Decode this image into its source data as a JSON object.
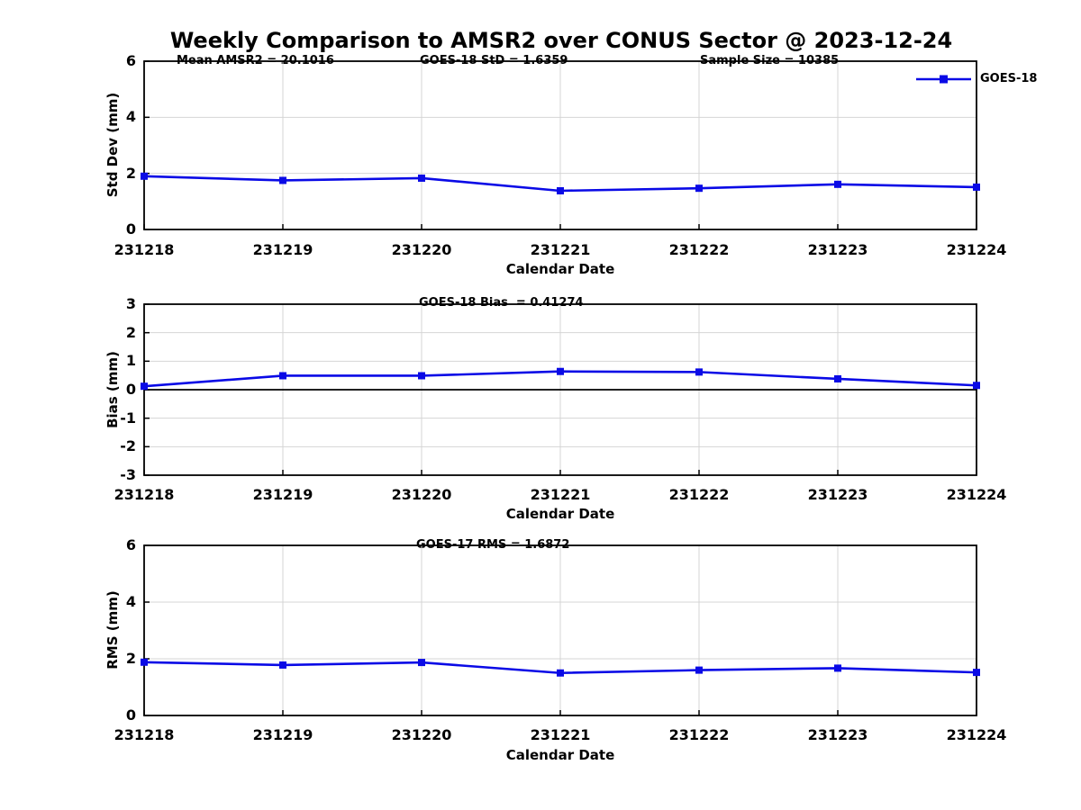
{
  "title": "Weekly Comparison to AMSR2 over CONUS Sector @ 2023-12-24",
  "annotations": {
    "mean_amsr2": "Mean AMSR2 = 20.1016",
    "goes18_std": "GOES-18 StD = 1.6359",
    "sample_size": "Sample Size = 10385"
  },
  "legend": {
    "label": "GOES-18"
  },
  "colors": {
    "line": "#0a0ae6",
    "marker": "#0a0ae6",
    "grid": "#d4d4d4",
    "frame": "#000000",
    "zero_line": "#000000",
    "text": "#000000",
    "background": "#ffffff"
  },
  "chart_data": [
    {
      "type": "line",
      "title": "",
      "series_name": "GOES-18",
      "categories": [
        "231218",
        "231219",
        "231220",
        "231221",
        "231222",
        "231223",
        "231224"
      ],
      "values": [
        1.9,
        1.75,
        1.83,
        1.38,
        1.47,
        1.61,
        1.51
      ],
      "xlabel": "Calendar Date",
      "ylabel": "Std Dev (mm)",
      "ylim": [
        0,
        6
      ],
      "yticks": [
        0,
        2,
        4,
        6
      ],
      "grid": true,
      "marker": "square",
      "legend_position": "top-right"
    },
    {
      "type": "line",
      "title": "GOES-18 Bias  = 0.41274",
      "series_name": "GOES-18",
      "categories": [
        "231218",
        "231219",
        "231220",
        "231221",
        "231222",
        "231223",
        "231224"
      ],
      "values": [
        0.12,
        0.49,
        0.49,
        0.64,
        0.62,
        0.38,
        0.15
      ],
      "xlabel": "Calendar Date",
      "ylabel": "Bias (mm)",
      "ylim": [
        -3,
        3
      ],
      "yticks": [
        -3,
        -2,
        -1,
        0,
        1,
        2,
        3
      ],
      "grid": true,
      "marker": "square",
      "zero_line": true
    },
    {
      "type": "line",
      "title": "GOES-17 RMS = 1.6872",
      "series_name": "GOES-18",
      "categories": [
        "231218",
        "231219",
        "231220",
        "231221",
        "231222",
        "231223",
        "231224"
      ],
      "values": [
        1.88,
        1.78,
        1.87,
        1.5,
        1.6,
        1.67,
        1.52
      ],
      "xlabel": "Calendar Date",
      "ylabel": "RMS (mm)",
      "ylim": [
        0,
        6
      ],
      "yticks": [
        0,
        2,
        4,
        6
      ],
      "grid": true,
      "marker": "square"
    }
  ]
}
